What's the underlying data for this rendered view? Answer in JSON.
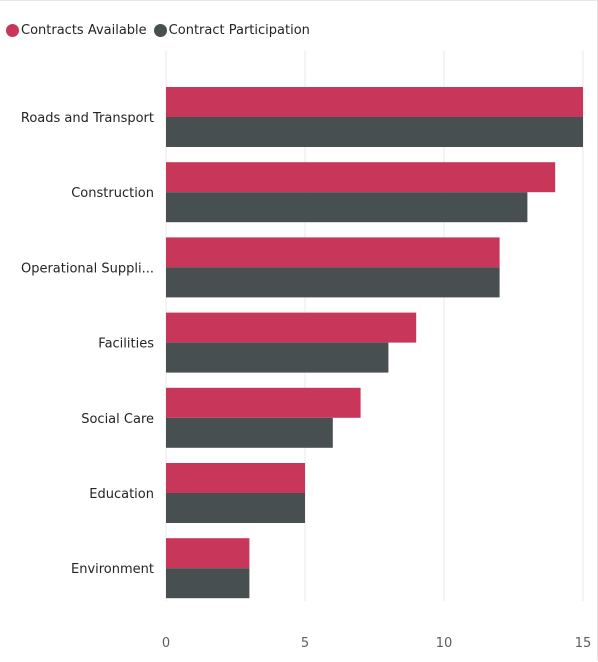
{
  "chart_data": {
    "type": "bar",
    "orientation": "horizontal",
    "categories": [
      "Roads and Transport",
      "Construction",
      "Operational Suppli...",
      "Facilities",
      "Social Care",
      "Education",
      "Environment"
    ],
    "series": [
      {
        "name": "Contracts Available",
        "color": "#c8375a",
        "values": [
          15,
          14,
          12,
          9,
          7,
          5,
          3
        ]
      },
      {
        "name": "Contract Participation",
        "color": "#474f51",
        "values": [
          15,
          13,
          12,
          8,
          6,
          5,
          3
        ]
      }
    ],
    "x_ticks": [
      "0",
      "5",
      "10",
      "15"
    ],
    "xlim": [
      0,
      15
    ],
    "grid": true,
    "legend_position": "top-left",
    "title": "",
    "xlabel": "",
    "ylabel": ""
  }
}
